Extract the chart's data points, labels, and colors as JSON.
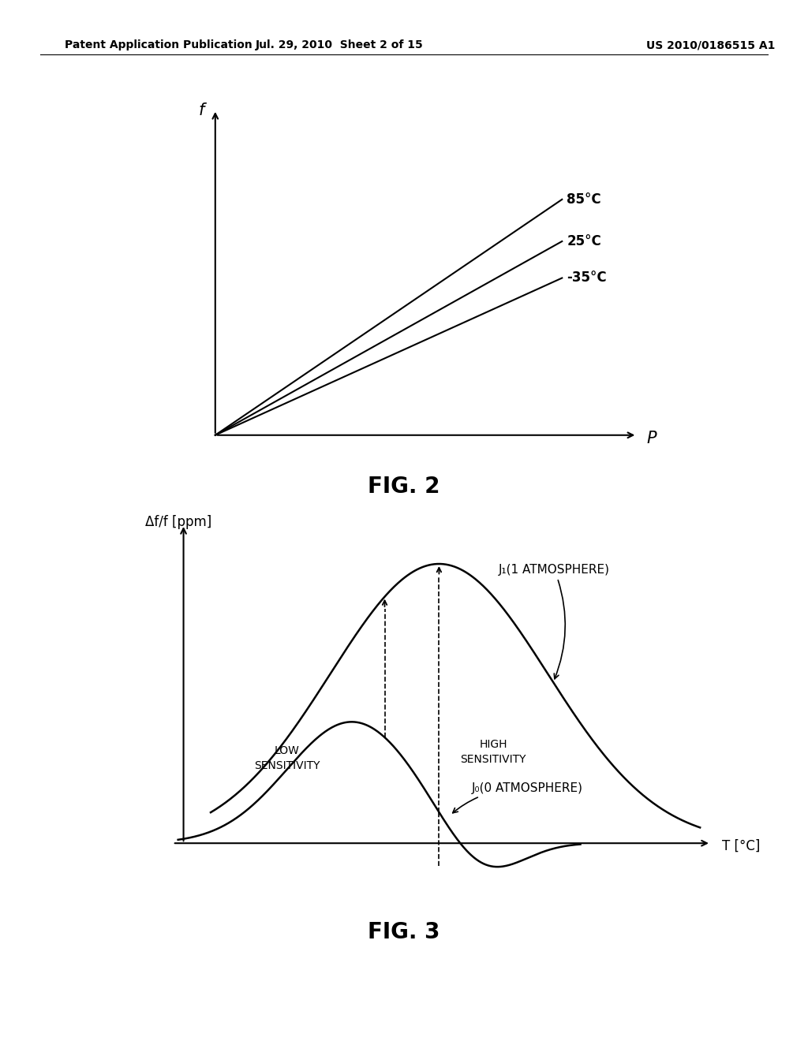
{
  "bg_color": "#ffffff",
  "header_text_left": "Patent Application Publication",
  "header_text_mid": "Jul. 29, 2010  Sheet 2 of 15",
  "header_text_right": "US 2010/0186515 A1",
  "fig2_title": "FIG. 2",
  "fig3_title": "FIG. 3",
  "fig2_ylabel": "f",
  "fig2_xlabel": "P",
  "fig2_slopes": [
    0.9,
    0.74,
    0.6
  ],
  "fig2_labels": [
    "85°C",
    "25°C",
    "-35°C"
  ],
  "fig3_ylabel": "Δf/f [ppm]",
  "fig3_xlabel": "T [°C]",
  "fig3_j1_label": "J₁(1 ATMOSPHERE)",
  "fig3_j0_label": "J₀(0 ATMOSPHERE)",
  "fig3_low_sens": "LOW\nSENSITIVITY",
  "fig3_high_sens": "HIGH\nSENSITIVITY",
  "line_color": "#000000",
  "font_size_header": 10,
  "font_size_axis_label": 13,
  "font_size_line_label": 12,
  "font_size_fig_title": 20,
  "font_size_curve_label": 11,
  "font_size_sens_label": 10
}
